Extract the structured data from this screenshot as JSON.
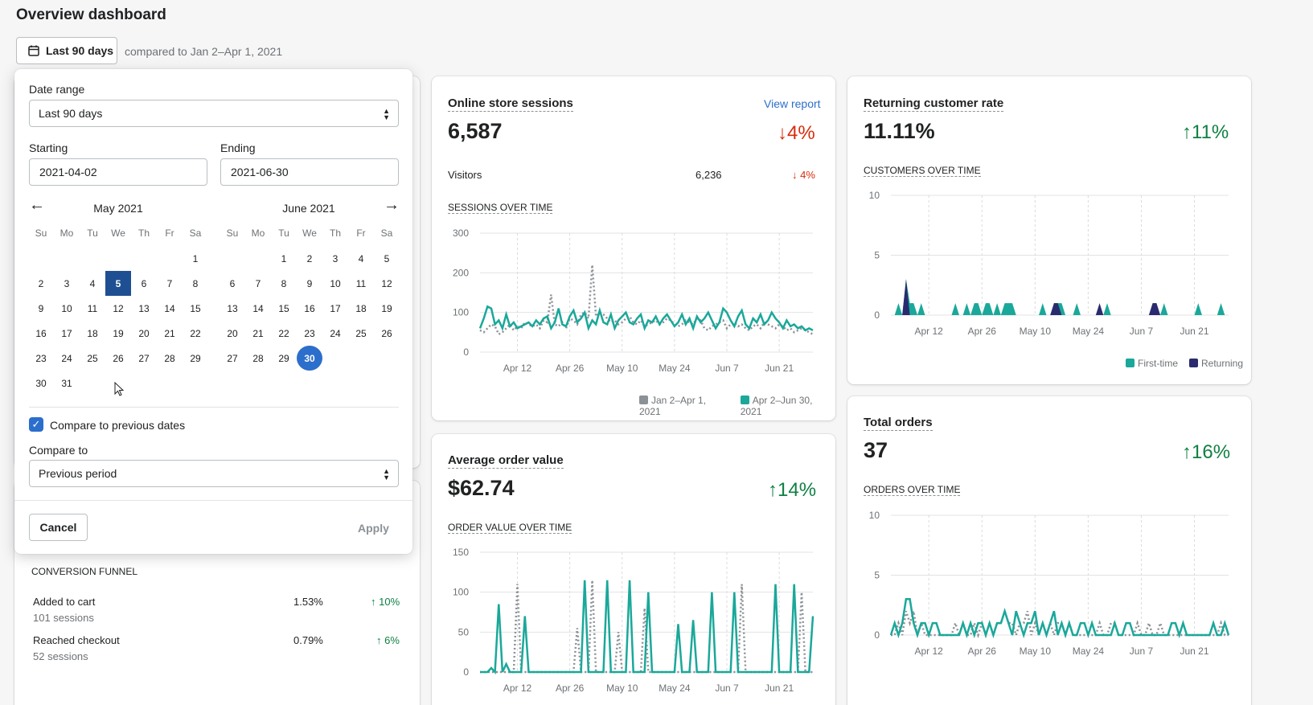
{
  "page": {
    "title": "Overview dashboard"
  },
  "range_button": {
    "label": "Last 90 days"
  },
  "compare_text": "compared to Jan 2–Apr 1, 2021",
  "popover": {
    "date_range_label": "Date range",
    "date_range_value": "Last 90 days",
    "starting_label": "Starting",
    "starting_value": "2021-04-02",
    "ending_label": "Ending",
    "ending_value": "2021-06-30",
    "weekdays": [
      "Su",
      "Mo",
      "Tu",
      "We",
      "Th",
      "Fr",
      "Sa"
    ],
    "month_left": {
      "title": "May 2021",
      "start_offset": 6,
      "days": 31,
      "selected": 5
    },
    "month_right": {
      "title": "June 2021",
      "start_offset": 2,
      "days": 30,
      "selected": 30
    },
    "compare_checkbox_label": "Compare to previous dates",
    "compare_to_label": "Compare to",
    "compare_to_value": "Previous period",
    "cancel": "Cancel",
    "apply": "Apply"
  },
  "funnel": {
    "title": "CONVERSION FUNNEL",
    "rows": [
      {
        "label": "Added to cart",
        "sub": "101 sessions",
        "rate": "1.53%",
        "delta": "↑ 10%"
      },
      {
        "label": "Reached checkout",
        "sub": "52 sessions",
        "rate": "0.79%",
        "delta": "↑ 6%"
      }
    ]
  },
  "sessions": {
    "title": "Online store sessions",
    "link": "View report",
    "value": "6,587",
    "delta": "↓4%",
    "visitors_label": "Visitors",
    "visitors_value": "6,236",
    "visitors_delta": "↓ 4%",
    "chart_title": "SESSIONS OVER TIME",
    "legend": [
      "Jan 2–Apr 1, 2021",
      "Apr 2–Jun 30, 2021"
    ]
  },
  "aov": {
    "title": "Average order value",
    "value": "$62.74",
    "delta": "↑14%",
    "chart_title": "ORDER VALUE OVER TIME"
  },
  "returning": {
    "title": "Returning customer rate",
    "value": "11.11%",
    "delta": "↑11%",
    "chart_title": "CUSTOMERS OVER TIME",
    "legend": [
      "First-time",
      "Returning"
    ]
  },
  "orders": {
    "title": "Total orders",
    "value": "37",
    "delta": "↑16%",
    "chart_title": "ORDERS OVER TIME"
  },
  "colors": {
    "teal": "#1aa89a",
    "gray": "#8c9196",
    "navy": "#2a2b6e",
    "blue": "#2c6ecb",
    "green": "#108043",
    "red": "#d72c0d"
  },
  "chart_data": [
    {
      "type": "line",
      "title": "SESSIONS OVER TIME",
      "x_ticks": [
        "Apr 12",
        "Apr 26",
        "May 10",
        "May 24",
        "Jun 7",
        "Jun 21"
      ],
      "y_ticks": [
        "0",
        "100",
        "200",
        "300"
      ],
      "ylim": [
        0,
        300
      ],
      "series": [
        {
          "name": "Jan 2–Apr 1, 2021",
          "style": "dotted",
          "values": [
            55,
            50,
            60,
            70,
            65,
            45,
            50,
            60,
            70,
            55,
            65,
            60,
            75,
            70,
            65,
            70,
            60,
            80,
            75,
            145,
            70,
            65,
            75,
            60,
            85,
            80,
            70,
            95,
            100,
            85,
            220,
            90,
            100,
            95,
            85,
            75,
            80,
            70,
            75,
            85,
            90,
            75,
            70,
            80,
            65,
            70,
            75,
            80,
            70,
            75,
            85,
            80,
            70,
            65,
            70,
            80,
            75,
            70,
            85,
            80,
            60,
            55,
            65,
            70,
            75,
            80,
            60,
            70,
            75,
            65,
            70,
            60,
            55,
            65,
            70,
            60,
            75,
            70,
            65,
            60,
            70,
            65,
            55,
            60,
            50,
            55,
            60,
            55,
            50,
            45
          ]
        },
        {
          "name": "Apr 2–Jun 30, 2021",
          "style": "solid",
          "values": [
            60,
            85,
            115,
            110,
            70,
            80,
            60,
            95,
            65,
            75,
            60,
            65,
            70,
            75,
            65,
            80,
            70,
            85,
            90,
            60,
            75,
            110,
            70,
            65,
            90,
            105,
            75,
            85,
            100,
            60,
            80,
            70,
            105,
            75,
            70,
            95,
            60,
            80,
            90,
            100,
            75,
            70,
            85,
            95,
            60,
            80,
            75,
            90,
            70,
            85,
            95,
            80,
            65,
            75,
            95,
            70,
            85,
            60,
            90,
            75,
            85,
            100,
            80,
            60,
            75,
            110,
            100,
            80,
            65,
            90,
            105,
            70,
            60,
            85,
            75,
            95,
            70,
            80,
            100,
            85,
            75,
            60,
            80,
            65,
            70,
            60,
            65,
            55,
            60,
            55
          ]
        }
      ]
    },
    {
      "type": "line",
      "title": "ORDER VALUE OVER TIME",
      "x_ticks": [
        "Apr 12",
        "Apr 26",
        "May 10",
        "May 24",
        "Jun 7",
        "Jun 21"
      ],
      "y_ticks": [
        "0",
        "50",
        "100",
        "150"
      ],
      "ylim": [
        0,
        150
      ],
      "series": [
        {
          "name": "Jan 2–Apr 1, 2021",
          "style": "dotted",
          "values": [
            0,
            0,
            0,
            0,
            0,
            0,
            0,
            0,
            0,
            0,
            110,
            0,
            0,
            0,
            0,
            0,
            0,
            0,
            0,
            0,
            0,
            0,
            0,
            0,
            0,
            0,
            55,
            0,
            0,
            0,
            115,
            0,
            0,
            0,
            0,
            0,
            0,
            50,
            0,
            0,
            0,
            0,
            0,
            0,
            80,
            0,
            0,
            0,
            0,
            0,
            0,
            0,
            0,
            0,
            0,
            0,
            0,
            0,
            0,
            0,
            0,
            0,
            0,
            0,
            0,
            0,
            0,
            0,
            0,
            0,
            110,
            0,
            0,
            0,
            0,
            0,
            0,
            0,
            0,
            0,
            0,
            0,
            0,
            0,
            0,
            0,
            100,
            0,
            0,
            0
          ]
        },
        {
          "name": "Apr 2–Jun 30, 2021",
          "style": "solid",
          "values": [
            0,
            0,
            0,
            5,
            0,
            85,
            0,
            10,
            0,
            0,
            0,
            0,
            70,
            0,
            0,
            0,
            0,
            0,
            0,
            0,
            0,
            0,
            0,
            0,
            0,
            0,
            0,
            0,
            115,
            0,
            0,
            0,
            0,
            0,
            115,
            0,
            0,
            0,
            0,
            0,
            115,
            0,
            0,
            0,
            0,
            100,
            0,
            0,
            0,
            0,
            0,
            0,
            0,
            60,
            0,
            0,
            0,
            65,
            0,
            0,
            0,
            0,
            100,
            0,
            0,
            0,
            0,
            0,
            100,
            0,
            0,
            0,
            0,
            0,
            0,
            0,
            0,
            0,
            0,
            110,
            0,
            0,
            0,
            0,
            110,
            0,
            0,
            0,
            0,
            70
          ]
        }
      ]
    },
    {
      "type": "area",
      "title": "CUSTOMERS OVER TIME",
      "x_ticks": [
        "Apr 12",
        "Apr 26",
        "May 10",
        "May 24",
        "Jun 7",
        "Jun 21"
      ],
      "y_ticks": [
        "0",
        "5",
        "10"
      ],
      "ylim": [
        0,
        10
      ],
      "series": [
        {
          "name": "First-time",
          "values": [
            0,
            0,
            1,
            0,
            3,
            1,
            1,
            0,
            1,
            0,
            0,
            0,
            0,
            0,
            0,
            0,
            0,
            1,
            0,
            0,
            1,
            0,
            1,
            1,
            0,
            1,
            1,
            0,
            1,
            0,
            1,
            1,
            1,
            0,
            0,
            0,
            0,
            0,
            0,
            0,
            1,
            0,
            0,
            1,
            1,
            1,
            0,
            0,
            0,
            1,
            0,
            0,
            0,
            0,
            0,
            0,
            0,
            1,
            0,
            0,
            0,
            0,
            0,
            0,
            0,
            0,
            0,
            0,
            0,
            1,
            1,
            0,
            1,
            0,
            0,
            0,
            0,
            0,
            0,
            0,
            0,
            1,
            0,
            0,
            0,
            0,
            0,
            1,
            0,
            0
          ]
        },
        {
          "name": "Returning",
          "values": [
            0,
            0,
            0,
            0,
            3,
            0,
            0,
            0,
            0,
            0,
            0,
            0,
            0,
            0,
            0,
            0,
            0,
            0,
            0,
            0,
            0,
            0,
            0,
            0,
            0,
            0,
            0,
            0,
            0,
            0,
            0,
            0,
            0,
            0,
            0,
            0,
            0,
            0,
            0,
            0,
            0,
            0,
            0,
            1,
            1,
            0,
            0,
            0,
            0,
            0,
            0,
            0,
            0,
            0,
            0,
            1,
            0,
            0,
            0,
            0,
            0,
            0,
            0,
            0,
            0,
            0,
            0,
            0,
            0,
            1,
            1,
            0,
            0,
            0,
            0,
            0,
            0,
            0,
            0,
            0,
            0,
            0,
            0,
            0,
            0,
            0,
            0,
            0,
            0,
            0
          ]
        }
      ]
    },
    {
      "type": "line",
      "title": "ORDERS OVER TIME",
      "x_ticks": [
        "Apr 12",
        "Apr 26",
        "May 10",
        "May 24",
        "Jun 7",
        "Jun 21"
      ],
      "y_ticks": [
        "0",
        "5",
        "10"
      ],
      "ylim": [
        0,
        10
      ],
      "series": [
        {
          "name": "Jan 2–Apr 1, 2021",
          "style": "dotted",
          "values": [
            0,
            0,
            1,
            0,
            2,
            1,
            2,
            0,
            1,
            0,
            0,
            0,
            0,
            0,
            0,
            0,
            0,
            1,
            0,
            1,
            0,
            0,
            1,
            0,
            1,
            0,
            1,
            0,
            1,
            1,
            2,
            1,
            1,
            0,
            1,
            1,
            2,
            0,
            1,
            0,
            1,
            0,
            1,
            0,
            1,
            1,
            0,
            1,
            0,
            0,
            0,
            0,
            0,
            0,
            0,
            1,
            0,
            0,
            1,
            1,
            0,
            0,
            0,
            0,
            0,
            1,
            0,
            0,
            1,
            0,
            0,
            1,
            0,
            0,
            0,
            0,
            0,
            0,
            0,
            0,
            0,
            0,
            0,
            0,
            0,
            0,
            0,
            1,
            0,
            0
          ]
        },
        {
          "name": "Apr 2–Jun 30, 2021",
          "style": "solid",
          "values": [
            0,
            1,
            0,
            1,
            3,
            3,
            1,
            0,
            1,
            1,
            0,
            1,
            1,
            0,
            0,
            0,
            0,
            0,
            0,
            1,
            0,
            1,
            0,
            1,
            1,
            0,
            1,
            0,
            1,
            1,
            2,
            1,
            0,
            2,
            1,
            0,
            1,
            1,
            2,
            0,
            1,
            0,
            1,
            2,
            0,
            1,
            0,
            1,
            0,
            0,
            1,
            1,
            0,
            1,
            0,
            0,
            0,
            0,
            0,
            1,
            0,
            0,
            1,
            1,
            0,
            0,
            0,
            0,
            0,
            0,
            0,
            0,
            0,
            0,
            1,
            1,
            0,
            1,
            0,
            0,
            0,
            0,
            0,
            0,
            0,
            1,
            0,
            0,
            1,
            0
          ]
        }
      ]
    }
  ]
}
